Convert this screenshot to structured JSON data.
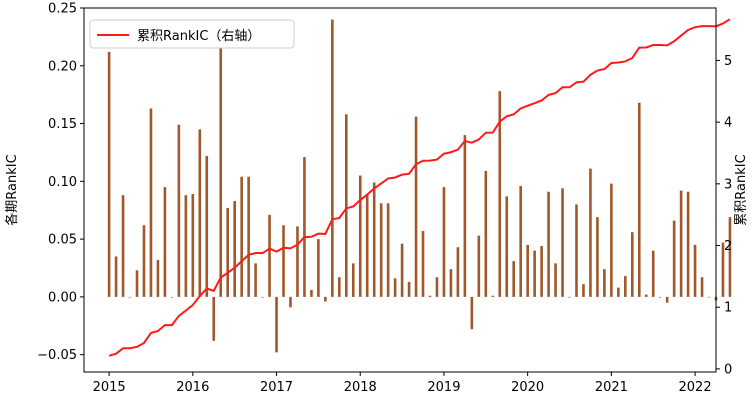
{
  "chart_data": {
    "type": "bar+line",
    "title": "",
    "ylabel_left": "各期RankIC",
    "ylabel_right": "累积RankIC",
    "xlabel": "",
    "x_ticks": [
      "2015",
      "2016",
      "2017",
      "2018",
      "2019",
      "2020",
      "2021",
      "2022"
    ],
    "y_left_ticks": [
      "−0.05",
      "0.00",
      "0.05",
      "0.10",
      "0.15",
      "0.20",
      "0.25"
    ],
    "y_right_ticks": [
      "0",
      "1",
      "2",
      "3",
      "4",
      "5"
    ],
    "ylim_left": [
      -0.065,
      0.25
    ],
    "ylim_right": [
      -0.05,
      5.85
    ],
    "xlim": [
      2014.7,
      2022.25
    ],
    "legend": {
      "position": "top-left",
      "entries": [
        "累积RankIC（右轴）"
      ]
    },
    "colors": {
      "bars": "#a0582a",
      "line": "#ff1a1a"
    },
    "bar_series": {
      "name": "各期RankIC",
      "values": [
        0.212,
        0.035,
        0.088,
        0.0,
        0.023,
        0.062,
        0.163,
        0.032,
        0.095,
        0.0,
        0.149,
        0.088,
        0.089,
        0.145,
        0.122,
        -0.038,
        0.216,
        0.077,
        0.083,
        0.104,
        0.104,
        0.029,
        0.0,
        0.071,
        -0.048,
        0.062,
        -0.009,
        0.061,
        0.121,
        0.006,
        0.05,
        -0.004,
        0.24,
        0.017,
        0.158,
        0.029,
        0.105,
        0.089,
        0.099,
        0.081,
        0.081,
        0.016,
        0.046,
        0.013,
        0.156,
        0.057,
        0.001,
        0.017,
        0.095,
        0.024,
        0.043,
        0.14,
        -0.028,
        0.053,
        0.109,
        0.001,
        0.178,
        0.087,
        0.031,
        0.096,
        0.045,
        0.04,
        0.044,
        0.091,
        0.029,
        0.094,
        0.0,
        0.08,
        0.011,
        0.111,
        0.069,
        0.024,
        0.098,
        0.008,
        0.018,
        0.056,
        0.168,
        0.002,
        0.04,
        0.0,
        -0.005,
        0.066,
        0.092,
        0.091,
        0.045,
        0.017,
        0.0,
        -0.003,
        0.047,
        0.069
      ]
    },
    "line_series": {
      "name": "累积RankIC（右轴）",
      "values": [
        0.212,
        0.247,
        0.335,
        0.335,
        0.358,
        0.42,
        0.583,
        0.615,
        0.71,
        0.71,
        0.859,
        0.947,
        1.036,
        1.181,
        1.303,
        1.265,
        1.481,
        1.558,
        1.641,
        1.745,
        1.849,
        1.878,
        1.878,
        1.949,
        1.901,
        1.963,
        1.954,
        2.015,
        2.136,
        2.142,
        2.192,
        2.188,
        2.428,
        2.445,
        2.603,
        2.632,
        2.737,
        2.826,
        2.925,
        3.006,
        3.087,
        3.103,
        3.149,
        3.162,
        3.318,
        3.375,
        3.376,
        3.393,
        3.488,
        3.512,
        3.555,
        3.695,
        3.667,
        3.72,
        3.829,
        3.83,
        4.008,
        4.095,
        4.126,
        4.222,
        4.267,
        4.307,
        4.351,
        4.442,
        4.471,
        4.565,
        4.565,
        4.645,
        4.656,
        4.767,
        4.836,
        4.86,
        4.958,
        4.966,
        4.984,
        5.04,
        5.208,
        5.21,
        5.25,
        5.25,
        5.245,
        5.311,
        5.403,
        5.494,
        5.539,
        5.556,
        5.556,
        5.553,
        5.6,
        5.669
      ]
    }
  }
}
